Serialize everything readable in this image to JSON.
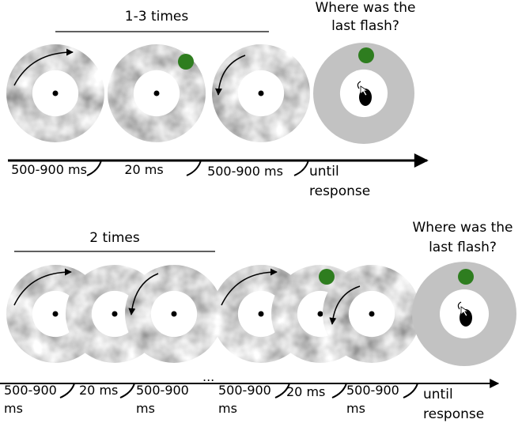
{
  "panels": [
    {
      "repeat_label": "1-3 times",
      "question": [
        "Where was the",
        "last flash?"
      ],
      "timeline": [
        [
          "500-900 ms"
        ],
        [
          "20 ms"
        ],
        [
          "500-900 ms"
        ],
        [
          "until",
          "response"
        ]
      ]
    },
    {
      "repeat_label": "2 times",
      "question": [
        "Where was the",
        "last flash?"
      ],
      "timeline": [
        [
          "500-900",
          "ms"
        ],
        [
          "20 ms"
        ],
        [
          "500-900",
          "ms"
        ],
        [
          "..."
        ],
        [
          "500-900",
          "ms"
        ],
        [
          "20 ms"
        ],
        [
          "500-900",
          "ms"
        ],
        [
          "until",
          "response"
        ]
      ]
    }
  ]
}
